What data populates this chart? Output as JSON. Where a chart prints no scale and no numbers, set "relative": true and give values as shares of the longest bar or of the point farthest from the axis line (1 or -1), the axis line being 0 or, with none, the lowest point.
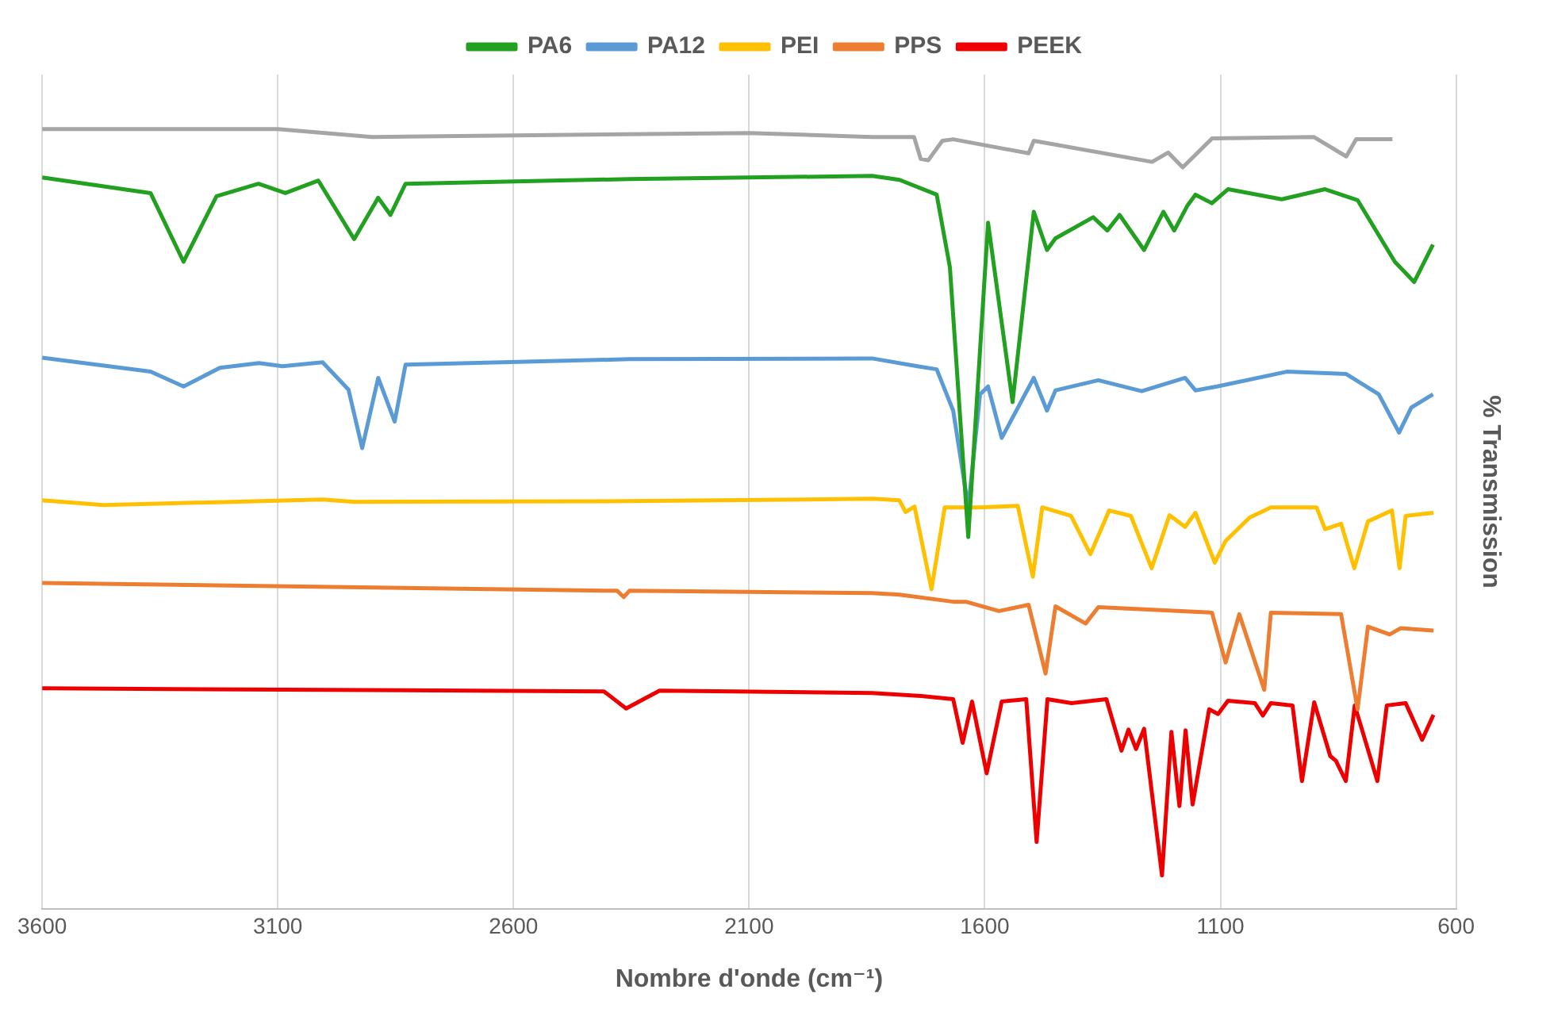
{
  "chart_data": {
    "type": "line",
    "xlabel": "Nombre d'onde (cm⁻¹)",
    "ylabel": "% Transmission",
    "relative": true,
    "xlim": [
      3600,
      600
    ],
    "xticks": [
      3600,
      3100,
      2600,
      2100,
      1600,
      1100,
      600
    ],
    "grid": "x",
    "legend": "top",
    "marker": "none",
    "line_style": "solid",
    "series": [
      {
        "color": "#a5a5a5",
        "x": [
          3600,
          3100,
          2900,
          2100,
          1839,
          1750,
          1736,
          1720,
          1690,
          1667,
          1507,
          1496,
          1245,
          1211,
          1180,
          1118,
          902,
          833,
          812,
          735
        ],
        "values": [
          1.0,
          1.0,
          0.99,
          0.995,
          0.99,
          0.99,
          0.962,
          0.96,
          0.985,
          0.987,
          0.969,
          0.985,
          0.958,
          0.97,
          0.951,
          0.988,
          0.99,
          0.965,
          0.987,
          0.987
        ]
      },
      {
        "name": "PA6",
        "color": "#22a020",
        "x": [
          3600,
          3370,
          3300,
          3230,
          3141,
          3084,
          3014,
          2938,
          2887,
          2861,
          2829,
          2354,
          1839,
          1781,
          1702,
          1674,
          1635,
          1593,
          1541,
          1496,
          1468,
          1450,
          1370,
          1340,
          1314,
          1262,
          1221,
          1198,
          1170,
          1153,
          1118,
          1084,
          970,
          878,
          809,
          730,
          689,
          649
        ],
        "values": [
          0.938,
          0.918,
          0.83,
          0.914,
          0.93,
          0.918,
          0.934,
          0.859,
          0.912,
          0.89,
          0.93,
          0.936,
          0.94,
          0.935,
          0.916,
          0.823,
          0.477,
          0.88,
          0.65,
          0.894,
          0.845,
          0.86,
          0.887,
          0.87,
          0.89,
          0.845,
          0.894,
          0.87,
          0.902,
          0.916,
          0.905,
          0.923,
          0.91,
          0.923,
          0.909,
          0.83,
          0.804,
          0.852
        ]
      },
      {
        "name": "PA12",
        "color": "#5b9bd5",
        "x": [
          3600,
          3370,
          3300,
          3223,
          3140,
          3090,
          3005,
          2950,
          2921,
          2887,
          2852,
          2829,
          2354,
          1839,
          1743,
          1702,
          1667,
          1635,
          1610,
          1593,
          1564,
          1496,
          1468,
          1450,
          1359,
          1267,
          1175,
          1153,
          1107,
          959,
          833,
          764,
          721,
          695,
          649
        ],
        "values": [
          0.707,
          0.689,
          0.67,
          0.694,
          0.7,
          0.696,
          0.701,
          0.666,
          0.591,
          0.681,
          0.625,
          0.698,
          0.705,
          0.706,
          0.696,
          0.692,
          0.639,
          0.515,
          0.66,
          0.67,
          0.604,
          0.681,
          0.639,
          0.665,
          0.678,
          0.664,
          0.681,
          0.665,
          0.67,
          0.689,
          0.686,
          0.66,
          0.611,
          0.643,
          0.66
        ]
      },
      {
        "name": "PEI",
        "color": "#ffc000",
        "x": [
          3600,
          3470,
          3005,
          2938,
          2354,
          1839,
          1781,
          1768,
          1749,
          1713,
          1685,
          1610,
          1530,
          1498,
          1478,
          1417,
          1376,
          1336,
          1290,
          1246,
          1208,
          1175,
          1153,
          1112,
          1089,
          1038,
          993,
          896,
          878,
          844,
          816,
          787,
          736,
          720,
          707,
          648
        ],
        "values": [
          0.524,
          0.518,
          0.525,
          0.522,
          0.523,
          0.526,
          0.524,
          0.509,
          0.516,
          0.41,
          0.515,
          0.515,
          0.517,
          0.426,
          0.515,
          0.504,
          0.455,
          0.511,
          0.504,
          0.437,
          0.505,
          0.49,
          0.508,
          0.444,
          0.472,
          0.502,
          0.515,
          0.515,
          0.487,
          0.494,
          0.437,
          0.497,
          0.511,
          0.437,
          0.504,
          0.508
        ]
      },
      {
        "name": "PPS",
        "color": "#ed7d31",
        "x": [
          3600,
          2380,
          2366,
          2354,
          1839,
          1781,
          1667,
          1640,
          1570,
          1507,
          1471,
          1450,
          1386,
          1359,
          1118,
          1089,
          1060,
          1007,
          993,
          844,
          809,
          787,
          741,
          718,
          648
        ],
        "values": [
          0.418,
          0.408,
          0.4,
          0.408,
          0.405,
          0.403,
          0.394,
          0.394,
          0.382,
          0.39,
          0.302,
          0.388,
          0.366,
          0.387,
          0.38,
          0.316,
          0.378,
          0.281,
          0.38,
          0.378,
          0.256,
          0.362,
          0.352,
          0.36,
          0.357
        ]
      },
      {
        "name": "PEEK",
        "color": "#ee0000",
        "x": [
          3600,
          2408,
          2361,
          2290,
          1839,
          1735,
          1667,
          1647,
          1627,
          1596,
          1564,
          1512,
          1490,
          1467,
          1416,
          1342,
          1310,
          1295,
          1279,
          1262,
          1224,
          1204,
          1187,
          1174,
          1159,
          1124,
          1105,
          1084,
          1027,
          1010,
          993,
          947,
          927,
          901,
          867,
          855,
          834,
          815,
          767,
          747,
          707,
          672,
          648
        ],
        "values": [
          0.283,
          0.279,
          0.257,
          0.28,
          0.277,
          0.273,
          0.269,
          0.213,
          0.266,
          0.174,
          0.266,
          0.269,
          0.086,
          0.269,
          0.264,
          0.269,
          0.203,
          0.23,
          0.205,
          0.231,
          0.043,
          0.227,
          0.132,
          0.229,
          0.134,
          0.256,
          0.25,
          0.267,
          0.264,
          0.248,
          0.264,
          0.261,
          0.164,
          0.265,
          0.196,
          0.19,
          0.164,
          0.261,
          0.164,
          0.261,
          0.264,
          0.217,
          0.249
        ]
      }
    ]
  }
}
